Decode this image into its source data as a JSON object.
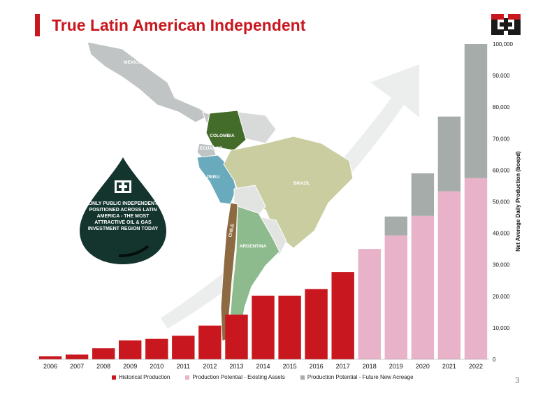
{
  "page": {
    "title": "True Latin American Independent",
    "page_number": "3",
    "drop_text": "ONLY PUBLIC INDEPENDENT POSITIONED ACROSS LATIN AMERICA - THE MOST ATTRACTIVE OIL & GAS INVESTMENT REGION TODAY",
    "logo_icon": "company-cross-logo-icon",
    "map_labels": [
      "MEXICO",
      "COLOMBIA",
      "ECUADOR",
      "PERU",
      "BRAZIL",
      "CHILE",
      "ARGENTINA"
    ],
    "colors": {
      "accent_red": "#c8171e",
      "historical": "#c8171e",
      "existing": "#e8b3c8",
      "future": "#a5aca9",
      "drop": "#14352e",
      "colombia": "#436b2a",
      "peru": "#6aaabd",
      "brazil": "#c9cda0",
      "argentina": "#8dbb8d",
      "chile": "#8e6a42",
      "mexico": "#c0c4c4"
    }
  },
  "chart_data": {
    "type": "bar",
    "stacked": true,
    "categories": [
      "2006",
      "2007",
      "2008",
      "2009",
      "2010",
      "2011",
      "2012",
      "2013",
      "2014",
      "2015",
      "2016",
      "2017",
      "2018",
      "2019",
      "2020",
      "2021",
      "2022"
    ],
    "series": [
      {
        "name": "Historical Production",
        "values": [
          1000,
          1500,
          3500,
          6000,
          6500,
          7500,
          10700,
          14200,
          20200,
          20200,
          22300,
          27700,
          0,
          0,
          0,
          0,
          0
        ]
      },
      {
        "name": "Production Potential - Existing Assets",
        "values": [
          0,
          0,
          0,
          0,
          0,
          0,
          0,
          0,
          0,
          0,
          0,
          0,
          35000,
          39300,
          45500,
          53300,
          57500
        ]
      },
      {
        "name": "Production Potential - Future New Acreage",
        "values": [
          0,
          0,
          0,
          0,
          0,
          0,
          0,
          0,
          0,
          0,
          0,
          0,
          0,
          6000,
          13500,
          23700,
          42500
        ]
      }
    ],
    "ylabel": "Net Average Daily Production (boepd)",
    "ylim": [
      0,
      100000
    ],
    "y_ticks": [
      0,
      10000,
      20000,
      30000,
      40000,
      50000,
      60000,
      70000,
      80000,
      90000,
      100000
    ],
    "y_tick_labels": [
      "0",
      "10,000",
      "20,000",
      "30,000",
      "40,000",
      "50,000",
      "60,000",
      "70,000",
      "80,000",
      "90,000",
      "100,000"
    ],
    "legend_position": "bottom"
  }
}
